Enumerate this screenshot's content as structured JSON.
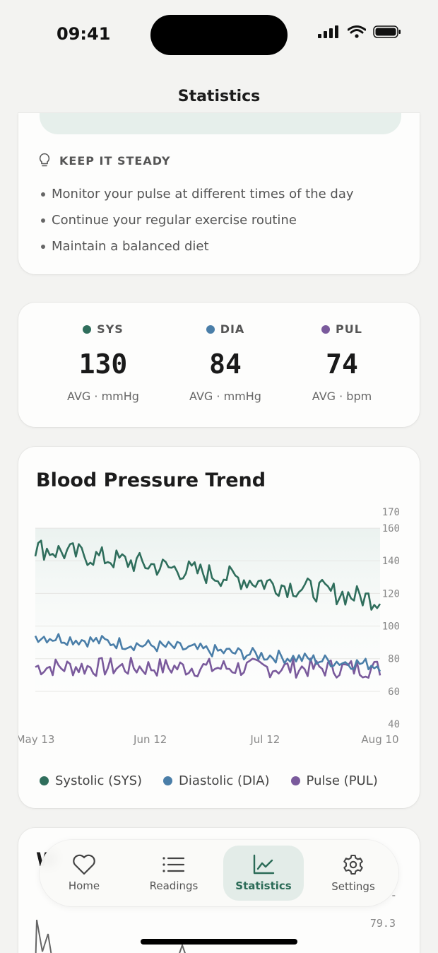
{
  "status_bar": {
    "time": "09:41"
  },
  "header": {
    "title": "Statistics"
  },
  "tips": {
    "heading": "KEEP IT STEADY",
    "items": [
      "Monitor your pulse at different times of the day",
      "Continue your regular exercise routine",
      "Maintain a balanced diet"
    ]
  },
  "averages": [
    {
      "label": "SYS",
      "value": "130",
      "unit": "AVG · mmHg",
      "color": "#2f6e5c"
    },
    {
      "label": "DIA",
      "value": "84",
      "unit": "AVG · mmHg",
      "color": "#4a7ea8"
    },
    {
      "label": "PUL",
      "value": "74",
      "unit": "AVG · bpm",
      "color": "#7a5a9c"
    }
  ],
  "chart": {
    "title": "Blood Pressure Trend",
    "legend": [
      "Systolic (SYS)",
      "Diastolic (DIA)",
      "Pulse (PUL)"
    ]
  },
  "chart_data": {
    "type": "line",
    "title": "Blood Pressure Trend",
    "x_tick_labels": [
      "May 13",
      "Jun 12",
      "Jul 12",
      "Aug 10"
    ],
    "y_tick_labels": [
      "170",
      "160",
      "140",
      "120",
      "100",
      "80",
      "60",
      "40"
    ],
    "ylim": [
      40,
      170
    ],
    "grid": true,
    "legend_position": "bottom",
    "series": [
      {
        "name": "Systolic (SYS)",
        "color": "#2f6e5c",
        "start": 148,
        "end": 116,
        "noise": 7
      },
      {
        "name": "Diastolic (DIA)",
        "color": "#4a7ea8",
        "start": 94,
        "end": 76,
        "noise": 4
      },
      {
        "name": "Pulse (PUL)",
        "color": "#7a5a9c",
        "start": 75,
        "end": 74,
        "noise": 6
      }
    ],
    "points": 120
  },
  "weight": {
    "tick_label": "79.3",
    "dash": "-"
  },
  "tabs": [
    {
      "label": "Home",
      "icon": "heart-icon"
    },
    {
      "label": "Readings",
      "icon": "list-icon"
    },
    {
      "label": "Statistics",
      "icon": "chart-icon"
    },
    {
      "label": "Settings",
      "icon": "gear-icon"
    }
  ],
  "colors": {
    "accent": "#2f6e5c",
    "background": "#f3f3f1"
  }
}
